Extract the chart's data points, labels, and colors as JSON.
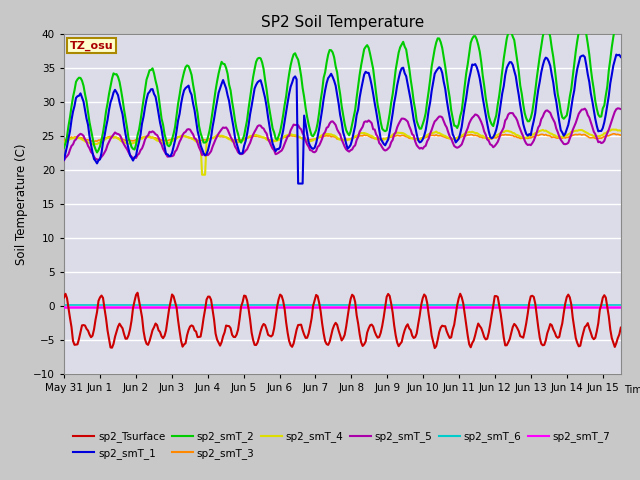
{
  "title": "SP2 Soil Temperature",
  "ylabel": "Soil Temperature (C)",
  "xlabel": "Time",
  "ylim": [
    -10,
    40
  ],
  "yticks": [
    -10,
    -5,
    0,
    5,
    10,
    15,
    20,
    25,
    30,
    35,
    40
  ],
  "fig_bg": "#d8d8d8",
  "plot_bg": "#e0e0e8",
  "tz_label": "TZ_osu",
  "series_colors": {
    "sp2_Tsurface": "#cc0000",
    "sp2_smT_1": "#0000dd",
    "sp2_smT_2": "#00cc00",
    "sp2_smT_3": "#ff8800",
    "sp2_smT_4": "#dddd00",
    "sp2_smT_5": "#aa00aa",
    "sp2_smT_6": "#00cccc",
    "sp2_smT_7": "#ff00ff"
  },
  "x_tick_labels": [
    "May 31",
    "Jun 1",
    "Jun 2",
    "Jun 3",
    "Jun 4",
    "Jun 5",
    "Jun 6",
    "Jun 7",
    "Jun 8",
    "Jun 9",
    "Jun 10",
    "Jun 11",
    "Jun 12",
    "Jun 13",
    "Jun 14",
    "Jun 15"
  ]
}
